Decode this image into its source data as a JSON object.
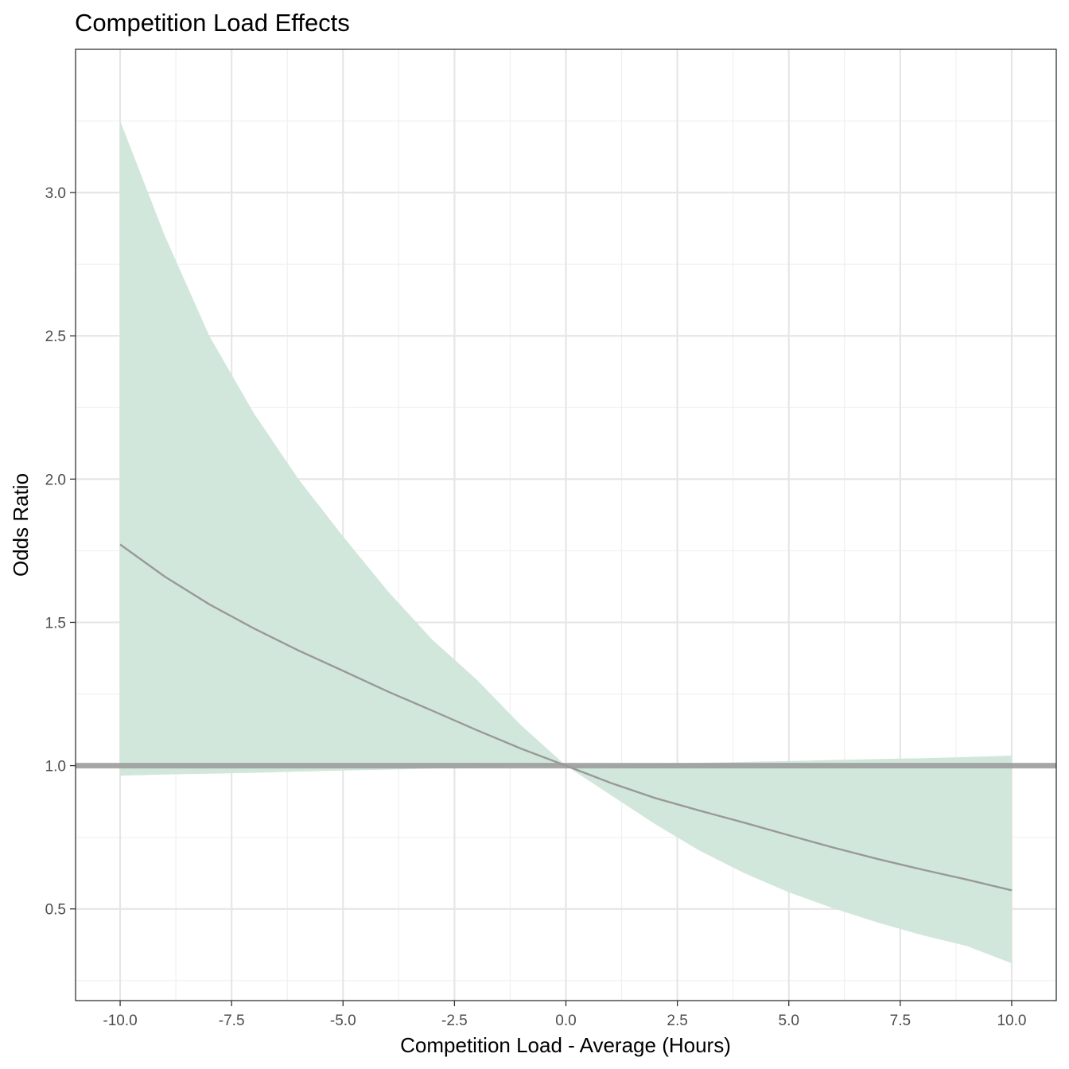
{
  "chart_data": {
    "type": "line",
    "title": "Competition Load Effects",
    "xlabel": "Competition Load - Average (Hours)",
    "ylabel": "Odds Ratio",
    "xlim": [
      -11.0,
      11.0
    ],
    "ylim": [
      0.18,
      3.5
    ],
    "x_ticks": [
      -10.0,
      -7.5,
      -5.0,
      -2.5,
      0.0,
      2.5,
      5.0,
      7.5,
      10.0
    ],
    "x_tick_labels": [
      "-10.0",
      "-7.5",
      "-5.0",
      "-2.5",
      "0.0",
      "2.5",
      "5.0",
      "7.5",
      "10.0"
    ],
    "y_ticks": [
      0.5,
      1.0,
      1.5,
      2.0,
      2.5,
      3.0
    ],
    "y_tick_labels": [
      "0.5",
      "1.0",
      "1.5",
      "2.0",
      "2.5",
      "3.0"
    ],
    "grid": true,
    "reference_line": {
      "y": 1.0,
      "color": "#999999"
    },
    "x": [
      -10,
      -9,
      -8,
      -7,
      -6,
      -5,
      -4,
      -3,
      -2,
      -1,
      0,
      1,
      2,
      3,
      4,
      5,
      6,
      7,
      8,
      9,
      10
    ],
    "series": [
      {
        "y": [
          1.772,
          1.66,
          1.563,
          1.479,
          1.402,
          1.331,
          1.259,
          1.192,
          1.124,
          1.059,
          1.0,
          0.94,
          0.887,
          0.843,
          0.801,
          0.757,
          0.714,
          0.674,
          0.637,
          0.602,
          0.565
        ],
        "lower": [
          0.965,
          0.969,
          0.972,
          0.975,
          0.979,
          0.983,
          0.986,
          0.99,
          0.993,
          0.997,
          1.0,
          0.898,
          0.796,
          0.703,
          0.625,
          0.558,
          0.502,
          0.452,
          0.408,
          0.37,
          0.31
        ],
        "upper": [
          3.25,
          2.85,
          2.5,
          2.23,
          2.0,
          1.8,
          1.61,
          1.44,
          1.3,
          1.14,
          1.0,
          1.003,
          1.006,
          1.01,
          1.013,
          1.016,
          1.02,
          1.023,
          1.026,
          1.03,
          1.035
        ],
        "line_color": "#999999",
        "ribbon_color": "#d0e6d9"
      }
    ]
  }
}
